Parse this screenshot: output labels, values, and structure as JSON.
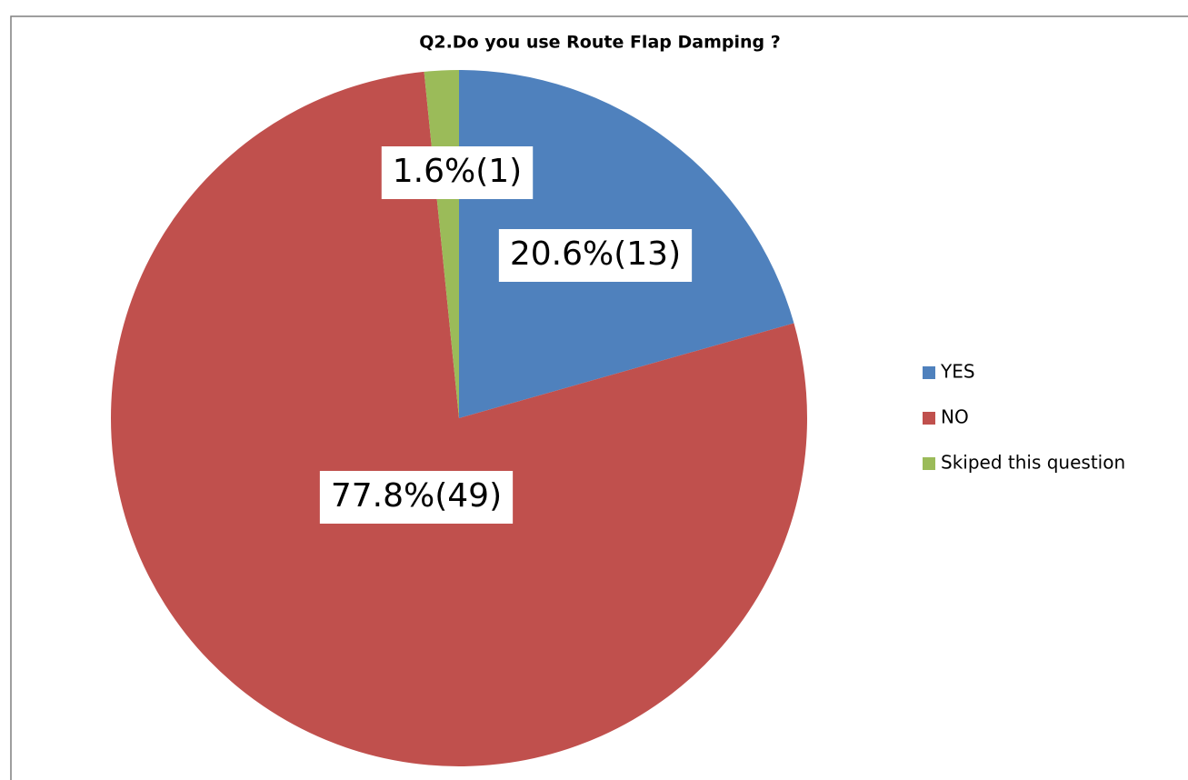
{
  "chart_data": {
    "type": "pie",
    "title": "Q2.Do you use Route Flap Damping ?",
    "categories": [
      "YES",
      "NO",
      "Skiped this question"
    ],
    "values": [
      20.6,
      77.8,
      1.6
    ],
    "value_labels": [
      "20.6%(13)",
      "77.8%(49)",
      "1.6%(1)"
    ],
    "colors": [
      "#4f81bd",
      "#c0504d",
      "#9bbb59"
    ],
    "legend": "right"
  }
}
